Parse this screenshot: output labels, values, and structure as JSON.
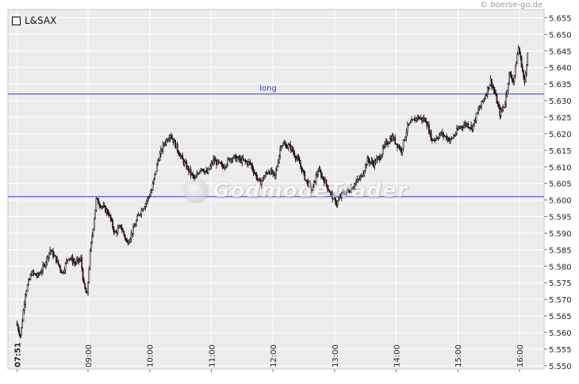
{
  "credit": "© boerse-go.de",
  "chart_data": {
    "type": "candlestick",
    "series_name": "L&SAX",
    "x_ticks": [
      "07:51",
      "09:00",
      "10:00",
      "11:00",
      "12:00",
      "13:00",
      "14:00",
      "15:00",
      "16:00"
    ],
    "x_tick_fractional_hours": [
      7.85,
      9,
      10,
      11,
      12,
      13,
      14,
      15,
      16
    ],
    "x_range_hours": [
      7.7,
      16.4
    ],
    "y_ticks": [
      "5.550",
      "5.555",
      "5.560",
      "5.565",
      "5.570",
      "5.575",
      "5.580",
      "5.585",
      "5.590",
      "5.595",
      "5.600",
      "5.605",
      "5.610",
      "5.615",
      "5.620",
      "5.625",
      "5.630",
      "5.635",
      "5.640",
      "5.645",
      "5.650",
      "5.655"
    ],
    "ylim": [
      5.549,
      5.6575
    ],
    "grid": true,
    "legend_placement": "top-left",
    "horizontal_lines": [
      {
        "value": 5.632,
        "label": "long"
      },
      {
        "value": 5.601,
        "label": ""
      }
    ],
    "up_color": "#ffffff",
    "down_color": "#8b1010",
    "line_color": "#3a3ad0",
    "price_path": [
      [
        7.85,
        5.563
      ],
      [
        7.92,
        5.559
      ],
      [
        8.0,
        5.572
      ],
      [
        8.1,
        5.578
      ],
      [
        8.2,
        5.577
      ],
      [
        8.3,
        5.58
      ],
      [
        8.4,
        5.585
      ],
      [
        8.5,
        5.582
      ],
      [
        8.6,
        5.578
      ],
      [
        8.7,
        5.583
      ],
      [
        8.8,
        5.581
      ],
      [
        8.9,
        5.582
      ],
      [
        8.95,
        5.574
      ],
      [
        9.0,
        5.571
      ],
      [
        9.05,
        5.584
      ],
      [
        9.15,
        5.6
      ],
      [
        9.25,
        5.598
      ],
      [
        9.35,
        5.596
      ],
      [
        9.45,
        5.59
      ],
      [
        9.55,
        5.592
      ],
      [
        9.65,
        5.587
      ],
      [
        9.75,
        5.591
      ],
      [
        9.85,
        5.596
      ],
      [
        9.95,
        5.599
      ],
      [
        10.05,
        5.603
      ],
      [
        10.15,
        5.612
      ],
      [
        10.25,
        5.617
      ],
      [
        10.35,
        5.62
      ],
      [
        10.45,
        5.616
      ],
      [
        10.55,
        5.612
      ],
      [
        10.65,
        5.609
      ],
      [
        10.75,
        5.606
      ],
      [
        10.85,
        5.61
      ],
      [
        10.95,
        5.608
      ],
      [
        11.05,
        5.612
      ],
      [
        11.2,
        5.61
      ],
      [
        11.35,
        5.613
      ],
      [
        11.5,
        5.612
      ],
      [
        11.65,
        5.611
      ],
      [
        11.8,
        5.605
      ],
      [
        11.95,
        5.609
      ],
      [
        12.05,
        5.607
      ],
      [
        12.15,
        5.617
      ],
      [
        12.3,
        5.616
      ],
      [
        12.45,
        5.611
      ],
      [
        12.55,
        5.606
      ],
      [
        12.65,
        5.603
      ],
      [
        12.75,
        5.609
      ],
      [
        12.85,
        5.606
      ],
      [
        12.95,
        5.602
      ],
      [
        13.05,
        5.599
      ],
      [
        13.15,
        5.602
      ],
      [
        13.25,
        5.603
      ],
      [
        13.35,
        5.605
      ],
      [
        13.45,
        5.607
      ],
      [
        13.55,
        5.612
      ],
      [
        13.65,
        5.611
      ],
      [
        13.75,
        5.613
      ],
      [
        13.85,
        5.617
      ],
      [
        13.95,
        5.619
      ],
      [
        14.1,
        5.615
      ],
      [
        14.2,
        5.622
      ],
      [
        14.35,
        5.625
      ],
      [
        14.5,
        5.624
      ],
      [
        14.6,
        5.618
      ],
      [
        14.75,
        5.62
      ],
      [
        14.9,
        5.618
      ],
      [
        15.05,
        5.622
      ],
      [
        15.15,
        5.623
      ],
      [
        15.25,
        5.622
      ],
      [
        15.35,
        5.627
      ],
      [
        15.45,
        5.631
      ],
      [
        15.55,
        5.636
      ],
      [
        15.62,
        5.632
      ],
      [
        15.7,
        5.626
      ],
      [
        15.78,
        5.629
      ],
      [
        15.85,
        5.638
      ],
      [
        15.92,
        5.636
      ],
      [
        16.0,
        5.646
      ],
      [
        16.05,
        5.641
      ],
      [
        16.1,
        5.635
      ],
      [
        16.15,
        5.645
      ]
    ]
  },
  "watermark_text": "GodmodeTrader"
}
